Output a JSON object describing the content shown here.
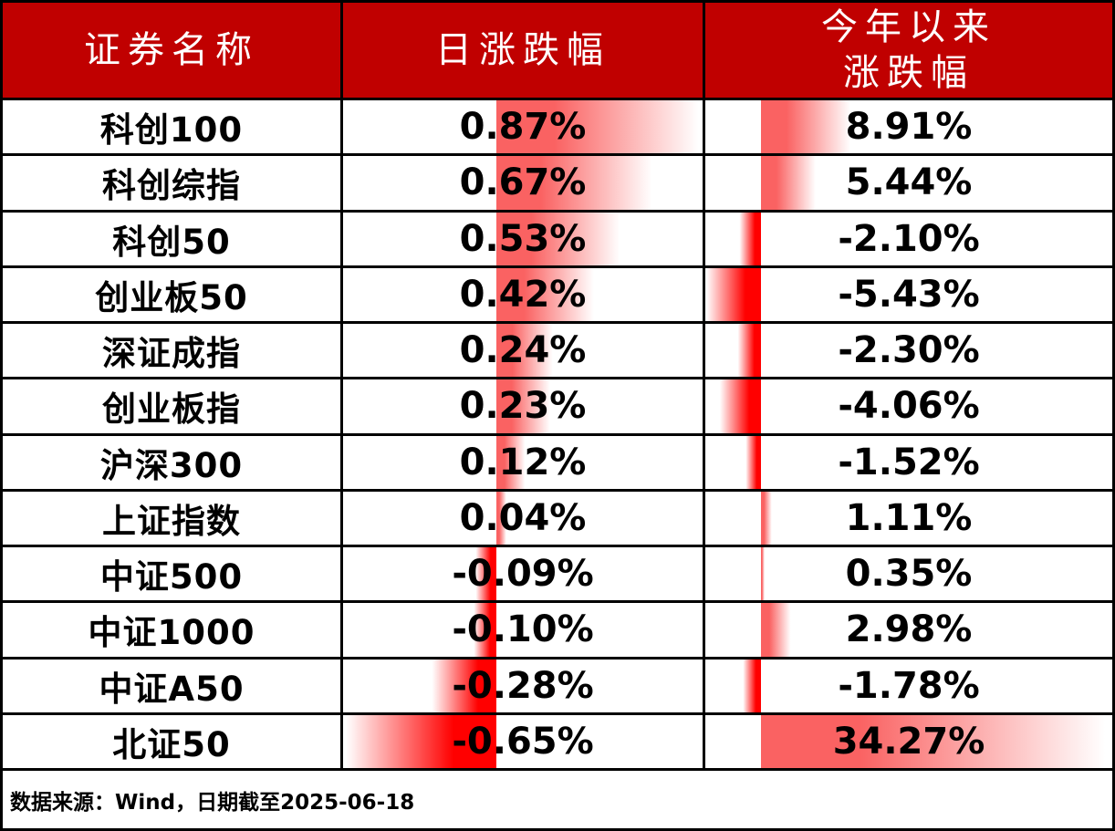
{
  "colors": {
    "header_bg": "#c00000",
    "header_text": "#ffffff",
    "grid_line": "#000000",
    "positive_bar": "#fa6262",
    "negative_bar": "#ff0000"
  },
  "header": {
    "col_security": "证券名称",
    "col_daily": "日涨跌幅",
    "col_ytd_line1": "今年以来",
    "col_ytd_line2": "涨跌幅"
  },
  "footer": {
    "source_note": "数据来源：Wind，日期截至2025-06-18"
  },
  "chart_data": {
    "type": "table",
    "title": "",
    "columns": [
      "证券名称",
      "日涨跌幅",
      "今年以来涨跌幅"
    ],
    "bar_style": "excel-gradient-databar",
    "daily_axis": {
      "min": -0.65,
      "max": 0.87
    },
    "ytd_axis": {
      "min": -5.43,
      "max": 34.27
    },
    "rows": [
      {
        "name": "科创100",
        "daily": 0.87,
        "daily_label": "0.87%",
        "ytd": 8.91,
        "ytd_label": "8.91%"
      },
      {
        "name": "科创综指",
        "daily": 0.67,
        "daily_label": "0.67%",
        "ytd": 5.44,
        "ytd_label": "5.44%"
      },
      {
        "name": "科创50",
        "daily": 0.53,
        "daily_label": "0.53%",
        "ytd": -2.1,
        "ytd_label": "-2.10%"
      },
      {
        "name": "创业板50",
        "daily": 0.42,
        "daily_label": "0.42%",
        "ytd": -5.43,
        "ytd_label": "-5.43%"
      },
      {
        "name": "深证成指",
        "daily": 0.24,
        "daily_label": "0.24%",
        "ytd": -2.3,
        "ytd_label": "-2.30%"
      },
      {
        "name": "创业板指",
        "daily": 0.23,
        "daily_label": "0.23%",
        "ytd": -4.06,
        "ytd_label": "-4.06%"
      },
      {
        "name": "沪深300",
        "daily": 0.12,
        "daily_label": "0.12%",
        "ytd": -1.52,
        "ytd_label": "-1.52%"
      },
      {
        "name": "上证指数",
        "daily": 0.04,
        "daily_label": "0.04%",
        "ytd": 1.11,
        "ytd_label": "1.11%"
      },
      {
        "name": "中证500",
        "daily": -0.09,
        "daily_label": "-0.09%",
        "ytd": 0.35,
        "ytd_label": "0.35%"
      },
      {
        "name": "中证1000",
        "daily": -0.1,
        "daily_label": "-0.10%",
        "ytd": 2.98,
        "ytd_label": "2.98%"
      },
      {
        "name": "中证A50",
        "daily": -0.28,
        "daily_label": "-0.28%",
        "ytd": -1.78,
        "ytd_label": "-1.78%"
      },
      {
        "name": "北证50",
        "daily": -0.65,
        "daily_label": "-0.65%",
        "ytd": 34.27,
        "ytd_label": "34.27%"
      }
    ],
    "footnote": "数据来源：Wind，日期截至2025-06-18",
    "legend_position": "none",
    "grid": true
  }
}
